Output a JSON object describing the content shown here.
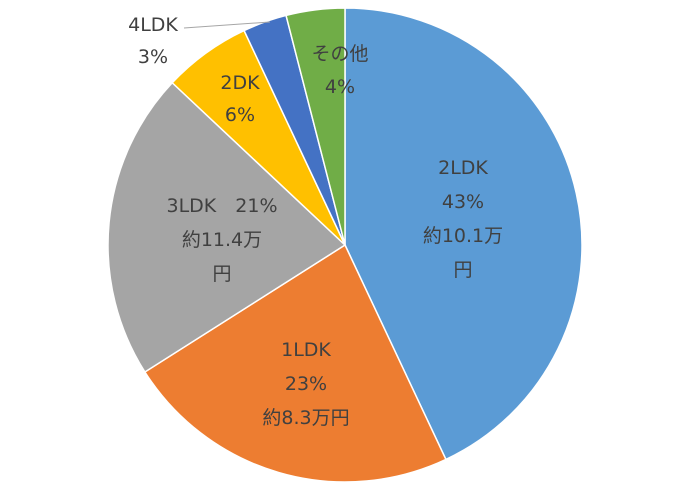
{
  "chart_data": {
    "type": "pie",
    "title": "",
    "start": "top",
    "direction": "clockwise",
    "slices": [
      {
        "category": "2LDK",
        "value": 43,
        "percent_label": "43%",
        "note": "約10.1万円",
        "color": "#5B9BD5",
        "label_lines": [
          "2LDK",
          "43%",
          "約10.1万",
          "円"
        ]
      },
      {
        "category": "1LDK",
        "value": 23,
        "percent_label": "23%",
        "note": "約8.3万円",
        "color": "#ED7D31",
        "label_lines": [
          "1LDK",
          "23%",
          "約8.3万円"
        ]
      },
      {
        "category": "3LDK",
        "value": 21,
        "percent_label": "21%",
        "note": "約11.4万円",
        "color": "#A5A5A5",
        "label_lines": [
          "3LDK　21%",
          "約11.4万",
          "円"
        ]
      },
      {
        "category": "2DK",
        "value": 6,
        "percent_label": "6%",
        "color": "#FFC000",
        "label_lines": [
          "2DK",
          "6%"
        ]
      },
      {
        "category": "4LDK",
        "value": 3,
        "percent_label": "3%",
        "color": "#4472C4",
        "label_lines": [
          "4LDK",
          "3%"
        ]
      },
      {
        "category": "その他",
        "value": 4,
        "percent_label": "4%",
        "color": "#70AD47",
        "label_lines": [
          "その他",
          "4%"
        ]
      }
    ]
  }
}
